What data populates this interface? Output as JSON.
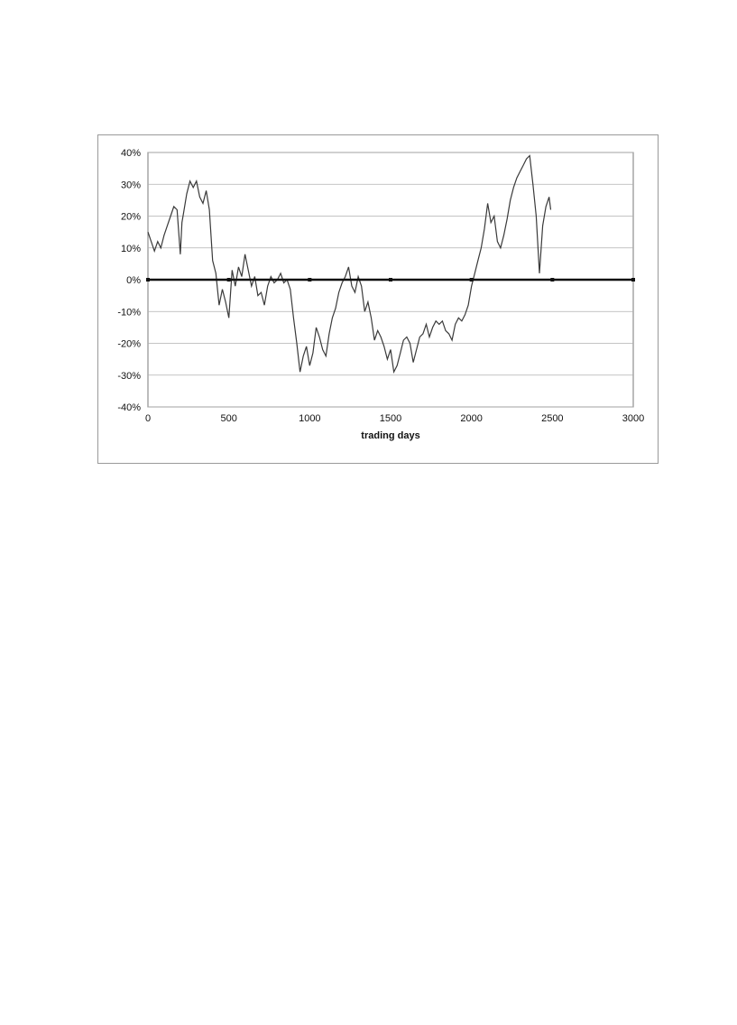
{
  "chart_data": {
    "type": "line",
    "title": "",
    "xlabel": "trading days",
    "ylabel": "",
    "xlim": [
      0,
      3000
    ],
    "ylim": [
      -0.4,
      0.4
    ],
    "grid": true,
    "legend": "none",
    "x_ticks": [
      0,
      500,
      1000,
      1500,
      2000,
      2500,
      3000
    ],
    "x_tick_labels": [
      "0",
      "500",
      "1000",
      "1500",
      "2000",
      "2500",
      "3000"
    ],
    "y_ticks": [
      0.4,
      0.3,
      0.2,
      0.1,
      0,
      -0.1,
      -0.2,
      -0.3,
      -0.4
    ],
    "y_tick_labels": [
      "40%",
      "30%",
      "20%",
      "10%",
      "0%",
      "-10%",
      "-20%",
      "-30%",
      "-40%"
    ],
    "colors": {
      "series": "#3a3a3a",
      "zero_line": "#111111",
      "grid": "#b0b0b0"
    },
    "series": [
      {
        "x": [
          0,
          20,
          40,
          60,
          80,
          100,
          120,
          140,
          160,
          180,
          200,
          210,
          220,
          240,
          260,
          280,
          300,
          320,
          340,
          360,
          380,
          400,
          420,
          440,
          460,
          480,
          500,
          520,
          540,
          560,
          580,
          600,
          620,
          640,
          660,
          680,
          700,
          720,
          740,
          760,
          780,
          800,
          820,
          840,
          860,
          880,
          900,
          920,
          940,
          960,
          980,
          1000,
          1020,
          1040,
          1060,
          1080,
          1100,
          1120,
          1140,
          1160,
          1180,
          1200,
          1220,
          1240,
          1260,
          1280,
          1300,
          1320,
          1340,
          1360,
          1380,
          1400,
          1420,
          1440,
          1460,
          1480,
          1500,
          1520,
          1540,
          1560,
          1580,
          1600,
          1620,
          1640,
          1660,
          1680,
          1700,
          1720,
          1740,
          1760,
          1780,
          1800,
          1820,
          1840,
          1860,
          1880,
          1900,
          1920,
          1940,
          1960,
          1980,
          2000,
          2020,
          2040,
          2060,
          2080,
          2100,
          2120,
          2140,
          2160,
          2180,
          2200,
          2220,
          2240,
          2260,
          2280,
          2300,
          2320,
          2340,
          2360,
          2380,
          2400,
          2420,
          2440,
          2460,
          2480,
          2490
        ],
        "y": [
          0.15,
          0.12,
          0.09,
          0.12,
          0.1,
          0.14,
          0.17,
          0.2,
          0.23,
          0.22,
          0.08,
          0.18,
          0.21,
          0.27,
          0.31,
          0.29,
          0.31,
          0.26,
          0.24,
          0.28,
          0.22,
          0.06,
          0.02,
          -0.08,
          -0.03,
          -0.07,
          -0.12,
          0.03,
          -0.02,
          0.04,
          0.01,
          0.08,
          0.03,
          -0.02,
          0.01,
          -0.05,
          -0.04,
          -0.08,
          -0.02,
          0.01,
          -0.01,
          0.0,
          0.02,
          -0.01,
          0.0,
          -0.03,
          -0.12,
          -0.2,
          -0.29,
          -0.24,
          -0.21,
          -0.27,
          -0.23,
          -0.15,
          -0.18,
          -0.22,
          -0.24,
          -0.17,
          -0.12,
          -0.09,
          -0.04,
          -0.01,
          0.01,
          0.04,
          -0.02,
          -0.04,
          0.01,
          -0.02,
          -0.1,
          -0.07,
          -0.12,
          -0.19,
          -0.16,
          -0.18,
          -0.21,
          -0.25,
          -0.22,
          -0.29,
          -0.27,
          -0.23,
          -0.19,
          -0.18,
          -0.2,
          -0.26,
          -0.22,
          -0.18,
          -0.17,
          -0.14,
          -0.18,
          -0.15,
          -0.13,
          -0.14,
          -0.13,
          -0.16,
          -0.17,
          -0.19,
          -0.14,
          -0.12,
          -0.13,
          -0.11,
          -0.08,
          -0.02,
          0.02,
          0.06,
          0.1,
          0.16,
          0.24,
          0.18,
          0.2,
          0.12,
          0.1,
          0.14,
          0.19,
          0.25,
          0.29,
          0.32,
          0.34,
          0.36,
          0.38,
          0.39,
          0.3,
          0.2,
          0.02,
          0.17,
          0.23,
          0.26,
          0.22
        ]
      }
    ],
    "zero_line": {
      "x": [
        0,
        500,
        1000,
        1500,
        2000,
        2500,
        3000
      ],
      "y": [
        0,
        0,
        0,
        0,
        0,
        0,
        0
      ]
    }
  }
}
